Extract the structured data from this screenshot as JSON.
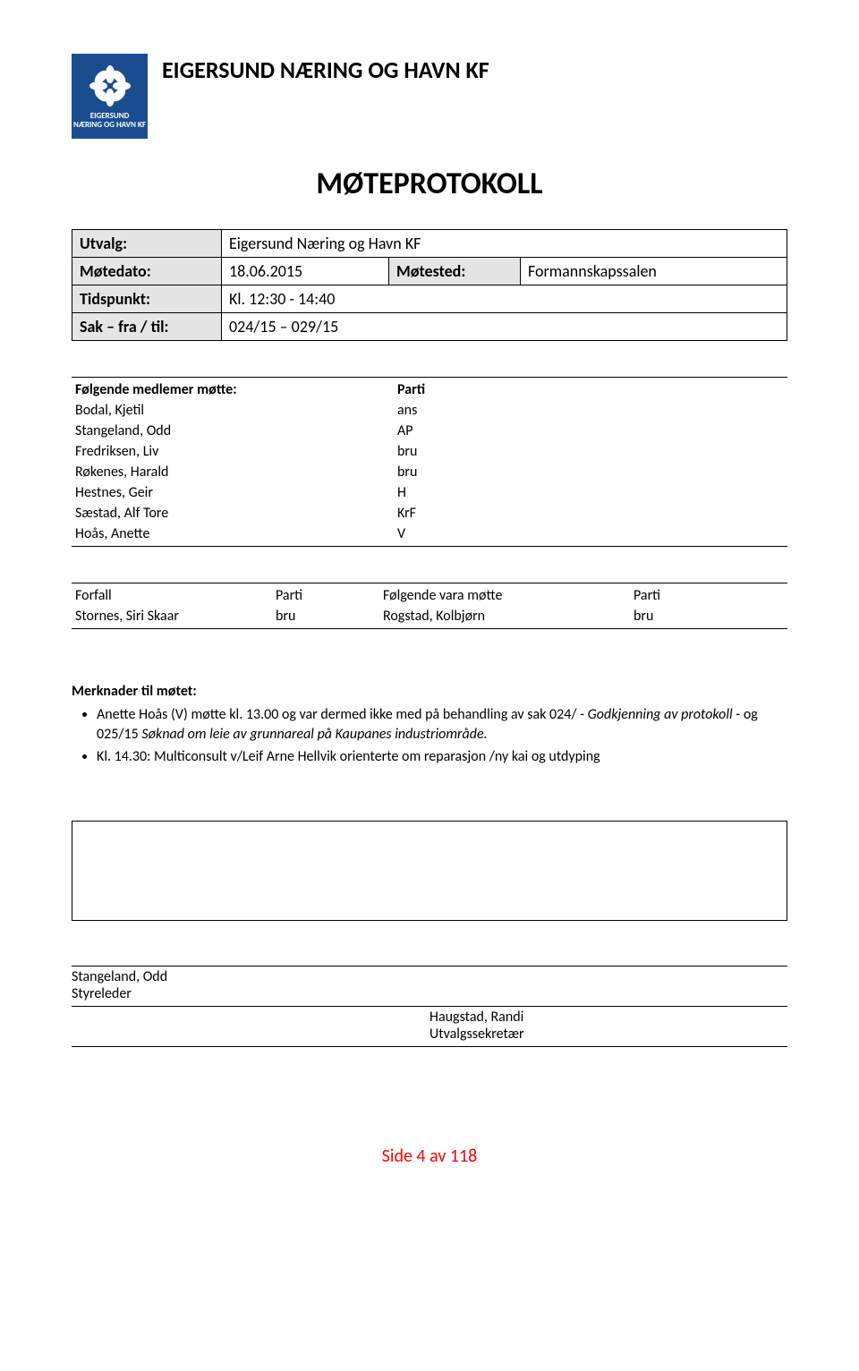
{
  "header": {
    "org_title": "EIGERSUND NÆRING OG HAVN KF",
    "logo_line1": "EIGERSUND",
    "logo_line2": "NÆRING OG HAVN KF",
    "logo_bg": "#1a4d8f",
    "logo_fg": "#ffffff"
  },
  "title": "MØTEPROTOKOLL",
  "meta": {
    "utvalg_label": "Utvalg:",
    "utvalg_value": "Eigersund Næring og Havn KF",
    "motedato_label": "Møtedato:",
    "motedato_value": "18.06.2015",
    "motested_label": "Møtested:",
    "motested_value": "Formannskapssalen",
    "tidspunkt_label": "Tidspunkt:",
    "tidspunkt_value": "Kl. 12:30 - 14:40",
    "sak_label": "Sak – fra / til:",
    "sak_value": "024/15 – 029/15"
  },
  "members": {
    "header_label": "Følgende medlemer møtte:",
    "header_party": "Parti",
    "rows": [
      {
        "name": "Bodal, Kjetil",
        "party": "ans"
      },
      {
        "name": "Stangeland, Odd",
        "party": "AP"
      },
      {
        "name": "Fredriksen, Liv",
        "party": "bru"
      },
      {
        "name": "Røkenes, Harald",
        "party": "bru"
      },
      {
        "name": "Hestnes, Geir",
        "party": "H"
      },
      {
        "name": "Sæstad, Alf Tore",
        "party": "KrF"
      },
      {
        "name": "Hoås, Anette",
        "party": "V"
      }
    ]
  },
  "forfall": {
    "h1": "Forfall",
    "h2": "Parti",
    "h3": "Følgende vara møtte",
    "h4": "Parti",
    "rows": [
      {
        "c1": "Stornes, Siri Skaar",
        "c2": "bru",
        "c3": "Rogstad, Kolbjørn",
        "c4": "bru"
      }
    ]
  },
  "notes": {
    "title": "Merknader til møtet:",
    "items": [
      {
        "pre": "Anette Hoås (V) møtte kl. 13.00 og var dermed ikke med på behandling av sak 024/ - ",
        "it": "Godkjenning av protokoll",
        "mid": " - og 025/15 ",
        "it2": "Søknad om leie av grunnareal på Kaupanes industriområde.",
        "post": ""
      },
      {
        "pre": "Kl. 14.30: Multiconsult v/Leif Arne Hellvik orienterte om reparasjon /ny kai og utdyping",
        "it": "",
        "mid": "",
        "it2": "",
        "post": ""
      }
    ]
  },
  "signatures": {
    "left_name": "Stangeland, Odd",
    "left_role": "Styreleder",
    "right_name": "Haugstad, Randi",
    "right_role": "Utvalgssekretær"
  },
  "footer": "Side 4 av 118"
}
